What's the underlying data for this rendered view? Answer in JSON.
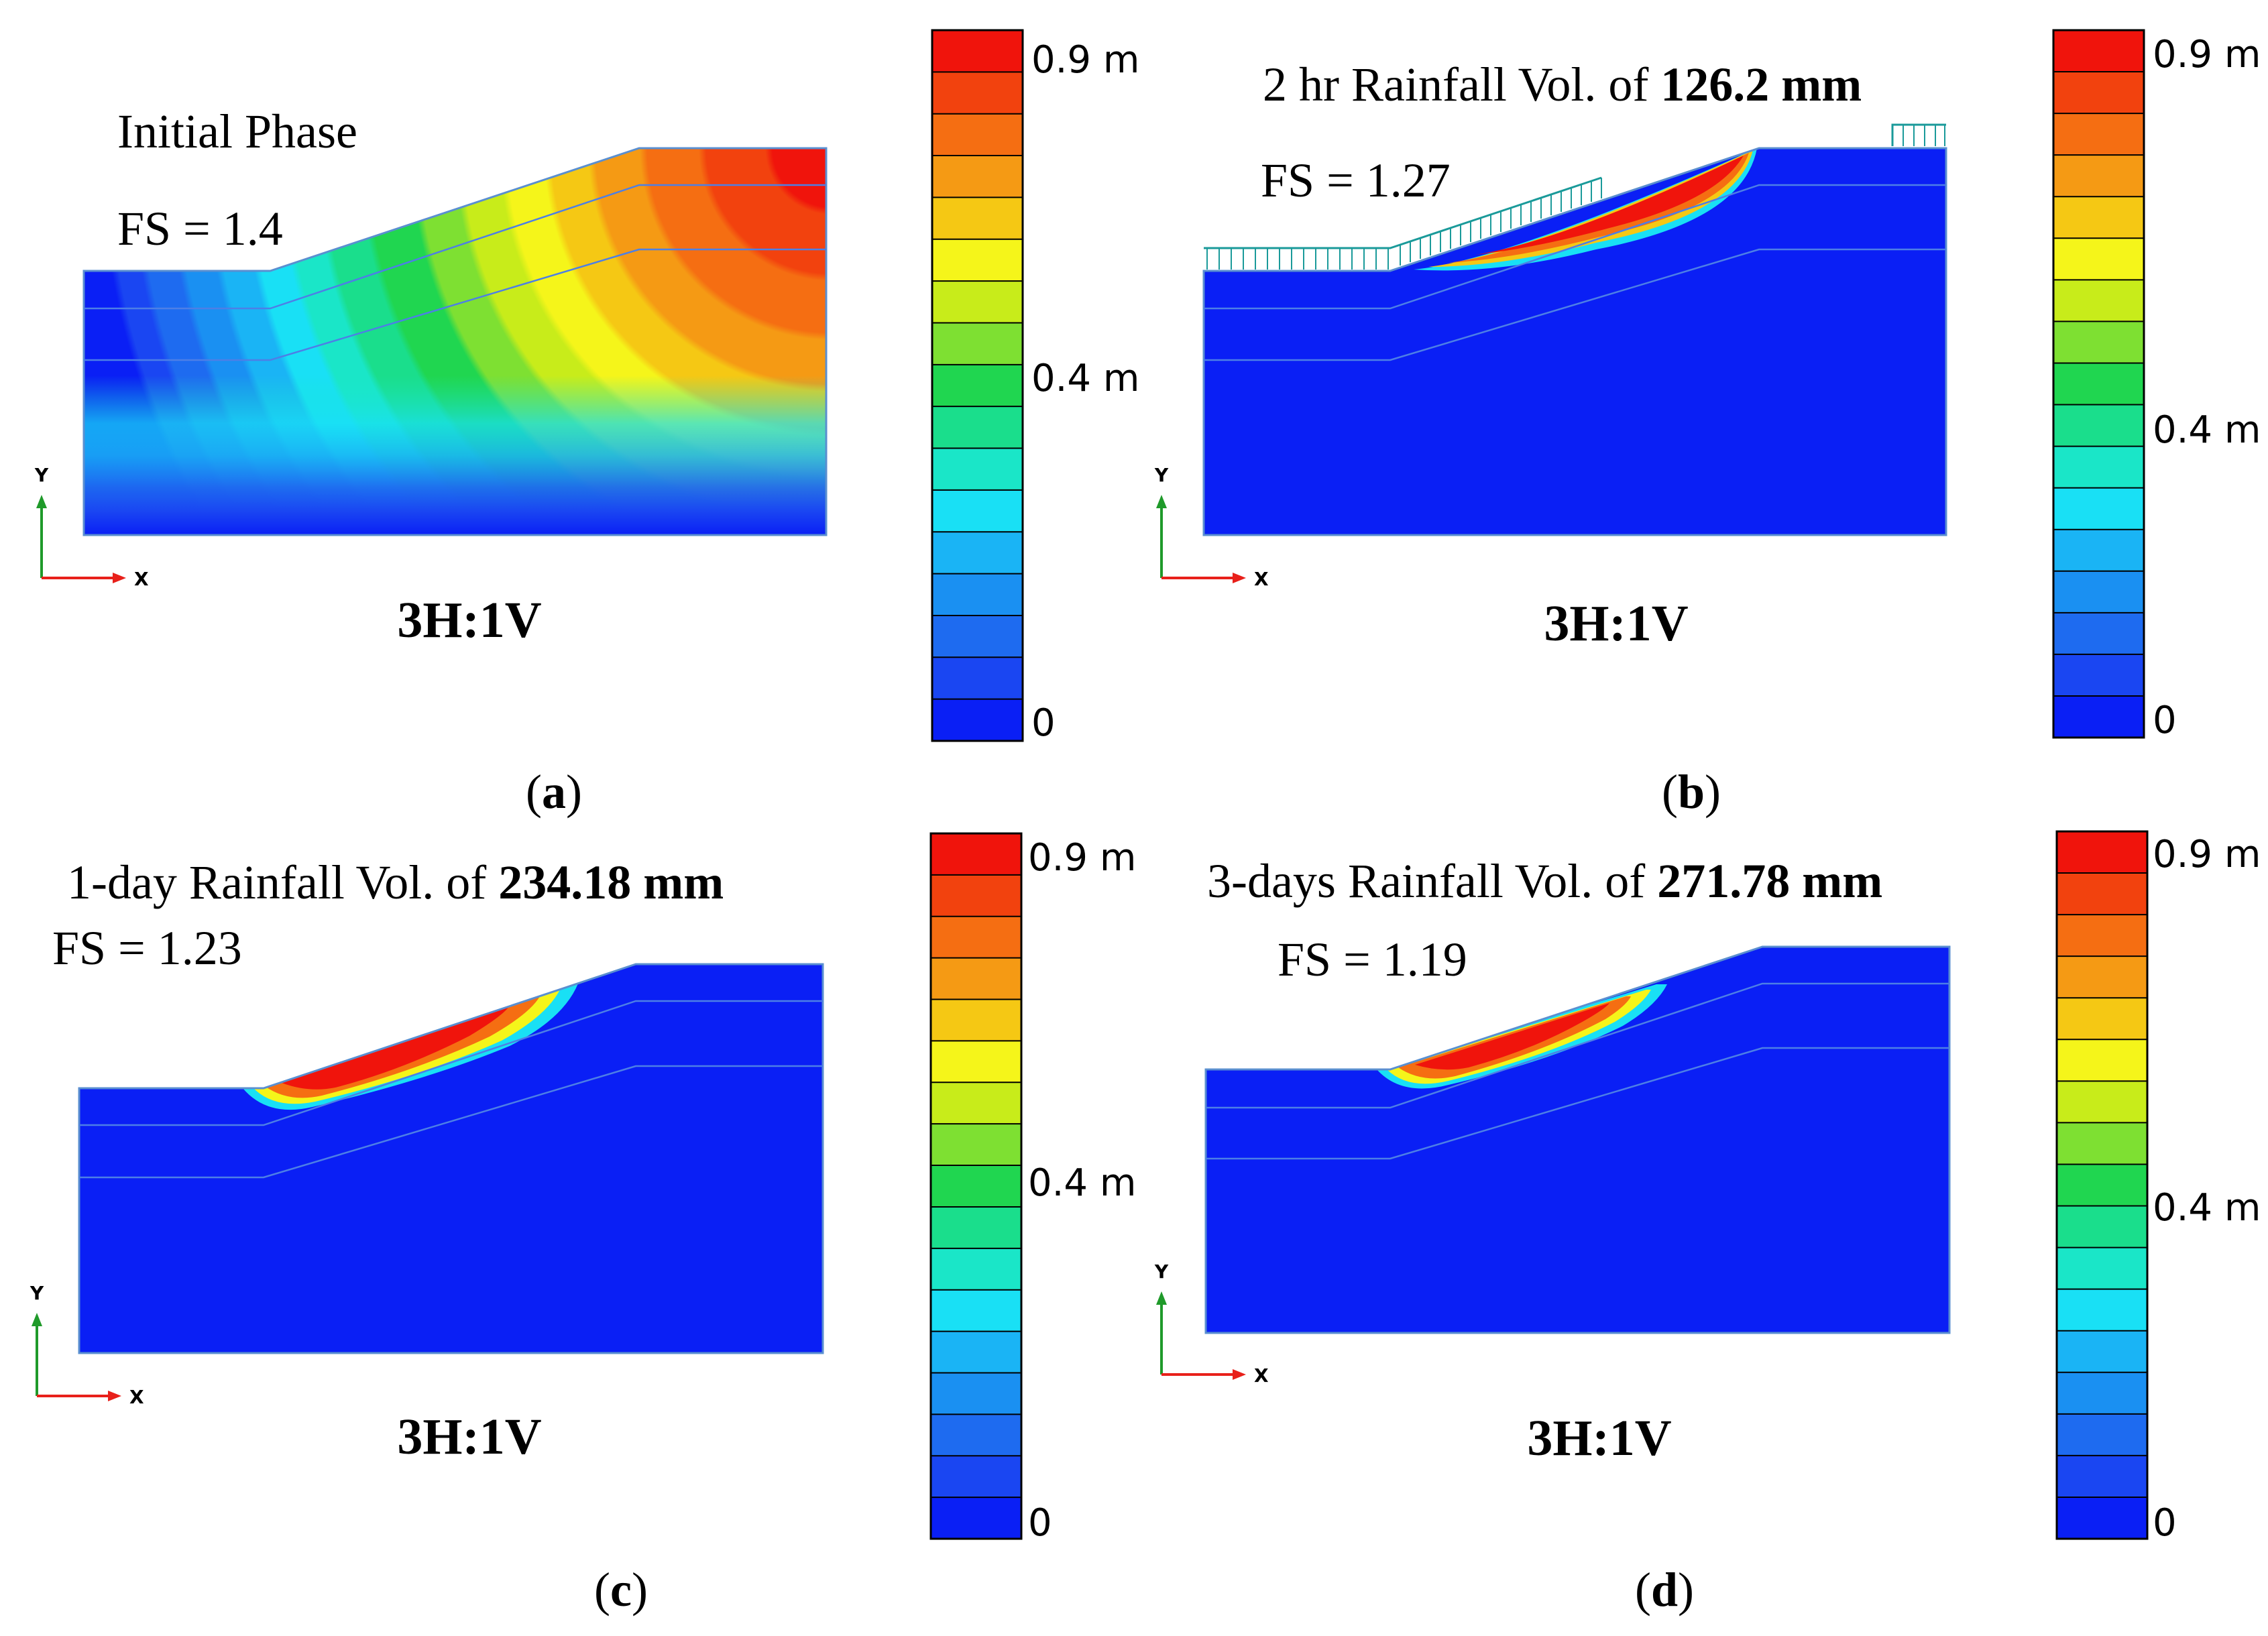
{
  "colors": {
    "soil": "#0a1ff5",
    "outline": "#5a8fd0",
    "inner_line": "#4d7fe6",
    "rain_arrow": "#1a9a9a",
    "axis_y": "#1f9a2a",
    "axis_x": "#e8201a",
    "scale": [
      "#0a1ff5",
      "#1a46f2",
      "#1e6bf0",
      "#1a90f2",
      "#1ab4f5",
      "#19e0f5",
      "#1ae6c8",
      "#1ade8c",
      "#20d650",
      "#7ee032",
      "#c8ec1a",
      "#f5f51a",
      "#f5c814",
      "#f59a14",
      "#f56e12",
      "#f2420e",
      "#f0140c"
    ]
  },
  "panels": [
    {
      "id": "a",
      "title_prefix": "Initial Phase",
      "title_bold": "",
      "fs_label": "FS = 1.4",
      "slope_label": "3H:1V",
      "caption_letter": "a",
      "axis_x": "X",
      "axis_y": "Y",
      "scale_top": "0.9 m",
      "scale_mid": "0.4 m",
      "scale_bottom": "0"
    },
    {
      "id": "b",
      "title_prefix": "2 hr Rainfall Vol. of ",
      "title_bold": "126.2 mm",
      "fs_label": "FS = 1.27",
      "slope_label": "3H:1V",
      "caption_letter": "b",
      "axis_x": "X",
      "axis_y": "Y",
      "scale_top": "0.9 m",
      "scale_mid": "0.4 m",
      "scale_bottom": "0"
    },
    {
      "id": "c",
      "title_prefix": "1-day Rainfall Vol. of ",
      "title_bold": "234.18 mm",
      "fs_label": "FS = 1.23",
      "slope_label": "3H:1V",
      "caption_letter": "c",
      "axis_x": "X",
      "axis_y": "Y",
      "scale_top": "0.9 m",
      "scale_mid": "0.4 m",
      "scale_bottom": "0"
    },
    {
      "id": "d",
      "title_prefix": "3-days Rainfall Vol. of ",
      "title_bold": "271.78 mm",
      "fs_label": "FS = 1.19",
      "slope_label": "3H:1V",
      "caption_letter": "d",
      "axis_x": "X",
      "axis_y": "Y",
      "scale_top": "0.9 m",
      "scale_mid": "0.4 m",
      "scale_bottom": "0"
    }
  ]
}
